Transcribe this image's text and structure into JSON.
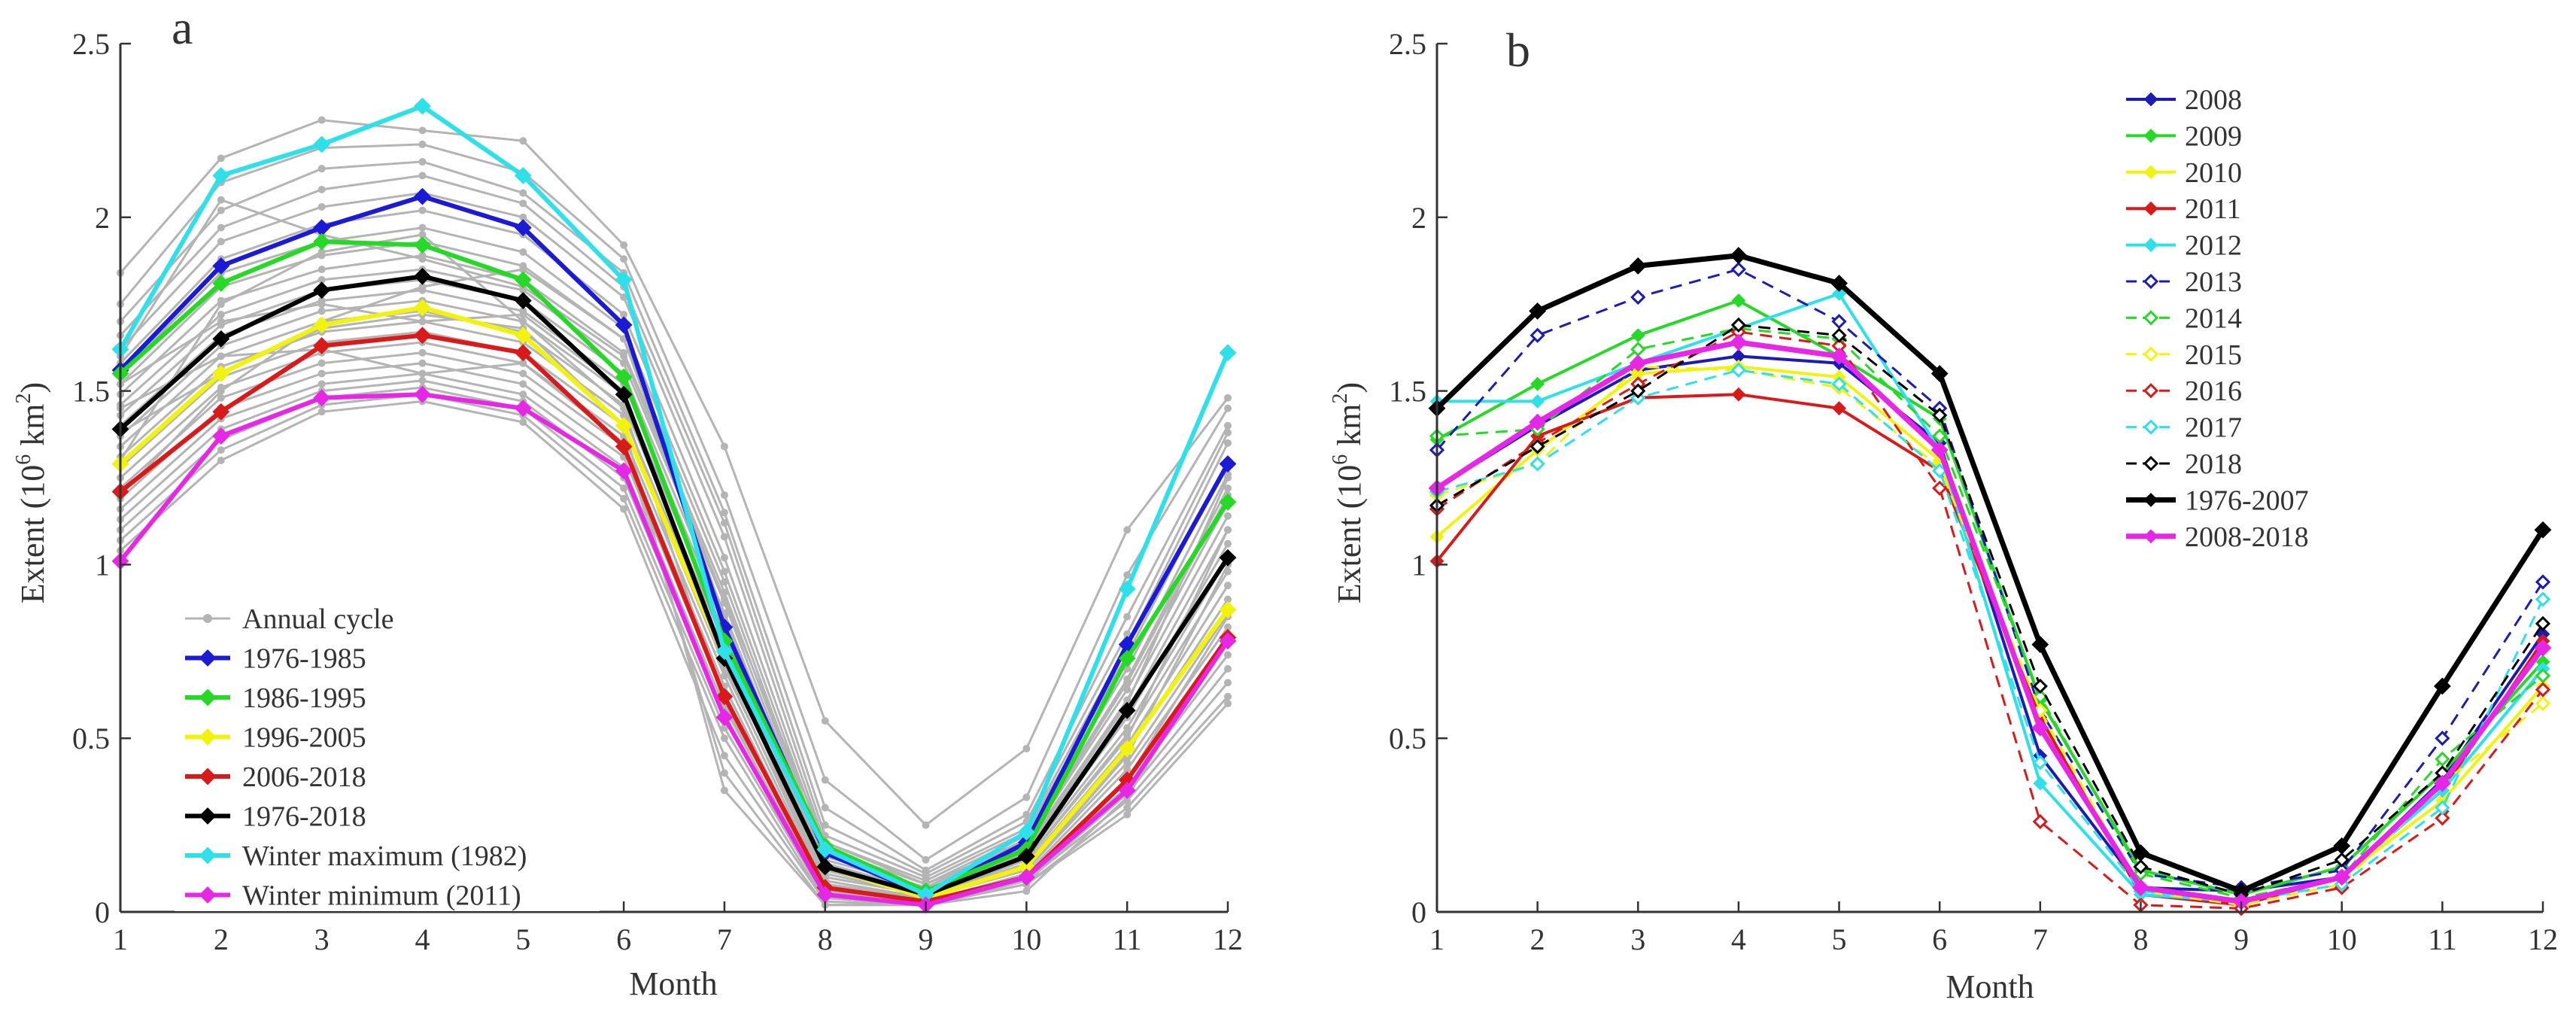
{
  "chart_data": [
    {
      "panel_label": "a",
      "type": "line",
      "title": "",
      "xlabel": "Month",
      "ylabel_prefix": "Extent (10",
      "ylabel_exp1": "6",
      "ylabel_mid": " km",
      "ylabel_exp2": "2",
      "ylabel_suffix": ")",
      "xlim": [
        1,
        12
      ],
      "ylim": [
        0,
        2.5
      ],
      "xticks": [
        "1",
        "2",
        "3",
        "4",
        "5",
        "6",
        "7",
        "8",
        "9",
        "10",
        "11",
        "12"
      ],
      "yticks": [
        "0",
        "0.5",
        "1",
        "1.5",
        "2",
        "2.5"
      ],
      "yticks_values": [
        0,
        0.5,
        1,
        1.5,
        2,
        2.5
      ],
      "x": [
        1,
        2,
        3,
        4,
        5,
        6,
        7,
        8,
        9,
        10,
        11,
        12
      ],
      "legend_position": "bottom-left",
      "background_series": {
        "name": "Annual cycle",
        "color": "#b4b4b4",
        "values": [
          [
            1.84,
            2.17,
            2.28,
            2.25,
            2.22,
            1.92,
            1.34,
            0.55,
            0.25,
            0.47,
            1.1,
            1.48
          ],
          [
            1.75,
            2.1,
            2.2,
            2.21,
            2.13,
            1.88,
            1.2,
            0.38,
            0.15,
            0.33,
            0.97,
            1.45
          ],
          [
            1.7,
            2.02,
            2.14,
            2.16,
            2.07,
            1.84,
            1.15,
            0.3,
            0.12,
            0.28,
            0.85,
            1.4
          ],
          [
            1.66,
            1.97,
            2.08,
            2.12,
            2.04,
            1.8,
            1.12,
            0.25,
            0.11,
            0.26,
            0.8,
            1.38
          ],
          [
            1.62,
            1.93,
            2.03,
            2.07,
            2.0,
            1.77,
            1.08,
            0.22,
            0.1,
            0.24,
            0.77,
            1.35
          ],
          [
            1.58,
            1.88,
            1.98,
            2.02,
            1.95,
            1.72,
            1.02,
            0.2,
            0.09,
            0.23,
            0.74,
            1.3
          ],
          [
            1.55,
            1.84,
            1.93,
            1.97,
            1.9,
            1.68,
            0.98,
            0.18,
            0.08,
            0.22,
            0.7,
            1.26
          ],
          [
            1.52,
            1.8,
            1.89,
            1.93,
            1.86,
            1.65,
            0.95,
            0.16,
            0.07,
            0.21,
            0.67,
            1.22
          ],
          [
            1.49,
            1.76,
            1.85,
            1.89,
            1.82,
            1.61,
            0.92,
            0.15,
            0.07,
            0.2,
            0.64,
            1.18
          ],
          [
            1.46,
            1.72,
            1.82,
            1.85,
            1.79,
            1.58,
            0.89,
            0.14,
            0.06,
            0.19,
            0.61,
            1.14
          ],
          [
            1.43,
            1.69,
            1.79,
            1.82,
            1.76,
            1.55,
            0.86,
            0.13,
            0.06,
            0.18,
            0.58,
            1.1
          ],
          [
            1.4,
            1.66,
            1.76,
            1.79,
            1.73,
            1.52,
            0.83,
            0.12,
            0.05,
            0.17,
            0.56,
            1.06
          ],
          [
            1.37,
            1.63,
            1.73,
            1.76,
            1.7,
            1.49,
            0.8,
            0.11,
            0.05,
            0.16,
            0.53,
            1.02
          ],
          [
            1.34,
            1.6,
            1.7,
            1.73,
            1.67,
            1.46,
            0.77,
            0.1,
            0.05,
            0.15,
            0.51,
            0.98
          ],
          [
            1.31,
            1.57,
            1.67,
            1.7,
            1.64,
            1.43,
            0.74,
            0.09,
            0.04,
            0.14,
            0.48,
            0.94
          ],
          [
            1.28,
            1.54,
            1.64,
            1.67,
            1.61,
            1.4,
            0.71,
            0.08,
            0.04,
            0.13,
            0.46,
            0.9
          ],
          [
            1.25,
            1.51,
            1.61,
            1.64,
            1.58,
            1.37,
            0.68,
            0.07,
            0.04,
            0.12,
            0.43,
            0.86
          ],
          [
            1.22,
            1.48,
            1.58,
            1.61,
            1.55,
            1.34,
            0.65,
            0.06,
            0.03,
            0.11,
            0.41,
            0.82
          ],
          [
            1.19,
            1.45,
            1.55,
            1.58,
            1.52,
            1.31,
            0.62,
            0.05,
            0.03,
            0.1,
            0.38,
            0.78
          ],
          [
            1.16,
            1.42,
            1.52,
            1.55,
            1.49,
            1.28,
            0.59,
            0.05,
            0.03,
            0.1,
            0.36,
            0.74
          ],
          [
            1.13,
            1.39,
            1.5,
            1.53,
            1.47,
            1.25,
            0.56,
            0.04,
            0.02,
            0.09,
            0.34,
            0.7
          ],
          [
            1.1,
            1.36,
            1.48,
            1.51,
            1.45,
            1.22,
            0.53,
            0.04,
            0.02,
            0.09,
            0.32,
            0.66
          ],
          [
            1.07,
            1.33,
            1.46,
            1.49,
            1.43,
            1.19,
            0.5,
            0.03,
            0.02,
            0.08,
            0.3,
            0.62
          ],
          [
            1.04,
            1.3,
            1.44,
            1.47,
            1.41,
            1.16,
            0.45,
            0.03,
            0.02,
            0.08,
            0.28,
            0.6
          ],
          [
            1.6,
            2.05,
            1.95,
            1.88,
            1.8,
            1.6,
            0.9,
            0.2,
            0.08,
            0.2,
            0.66,
            1.2
          ],
          [
            1.2,
            1.5,
            1.7,
            1.8,
            1.85,
            1.65,
            0.85,
            0.12,
            0.05,
            0.12,
            0.45,
            1.0
          ],
          [
            1.45,
            1.6,
            1.62,
            1.55,
            1.58,
            1.35,
            0.4,
            0.02,
            0.02,
            0.08,
            0.38,
            0.85
          ],
          [
            1.3,
            1.75,
            1.9,
            1.95,
            1.7,
            1.45,
            0.6,
            0.08,
            0.04,
            0.15,
            0.5,
            1.1
          ],
          [
            1.52,
            1.7,
            1.75,
            1.7,
            1.72,
            1.5,
            0.7,
            0.1,
            0.05,
            0.18,
            0.6,
            1.25
          ],
          [
            1.38,
            1.55,
            1.68,
            1.72,
            1.68,
            1.4,
            0.35,
            0.02,
            0.02,
            0.06,
            0.33,
            0.8
          ]
        ]
      },
      "series": [
        {
          "name": "1976-1985",
          "color": "#1b1bd6",
          "values": [
            1.56,
            1.86,
            1.97,
            2.06,
            1.97,
            1.69,
            0.82,
            0.17,
            0.05,
            0.2,
            0.77,
            1.29
          ]
        },
        {
          "name": "1986-1995",
          "color": "#26d926",
          "values": [
            1.55,
            1.81,
            1.93,
            1.92,
            1.82,
            1.54,
            0.78,
            0.19,
            0.06,
            0.18,
            0.73,
            1.18
          ]
        },
        {
          "name": "1996-2005",
          "color": "#f2f20f",
          "values": [
            1.29,
            1.55,
            1.69,
            1.74,
            1.66,
            1.4,
            0.73,
            0.13,
            0.04,
            0.13,
            0.47,
            0.87
          ]
        },
        {
          "name": "2006-2018",
          "color": "#d91a1a",
          "values": [
            1.21,
            1.44,
            1.63,
            1.66,
            1.61,
            1.34,
            0.62,
            0.07,
            0.03,
            0.1,
            0.38,
            0.79
          ]
        },
        {
          "name": "1976-2018",
          "color": "#000000",
          "values": [
            1.39,
            1.65,
            1.79,
            1.83,
            1.76,
            1.49,
            0.73,
            0.13,
            0.05,
            0.16,
            0.58,
            1.02
          ]
        },
        {
          "name": "Winter maximum (1982)",
          "color": "#2ee0ea",
          "values": [
            1.62,
            2.12,
            2.21,
            2.32,
            2.12,
            1.82,
            0.75,
            0.18,
            0.05,
            0.23,
            0.93,
            1.61
          ]
        },
        {
          "name": "Winter minimum (2011)",
          "color": "#e628e6",
          "values": [
            1.01,
            1.37,
            1.48,
            1.49,
            1.45,
            1.27,
            0.56,
            0.05,
            0.02,
            0.1,
            0.35,
            0.78
          ]
        }
      ]
    },
    {
      "panel_label": "b",
      "type": "line",
      "title": "",
      "xlabel": "Month",
      "ylabel_prefix": "Extent (10",
      "ylabel_exp1": "6",
      "ylabel_mid": " km",
      "ylabel_exp2": "2",
      "ylabel_suffix": ")",
      "xlim": [
        1,
        12
      ],
      "ylim": [
        0,
        2.5
      ],
      "xticks": [
        "1",
        "2",
        "3",
        "4",
        "5",
        "6",
        "7",
        "8",
        "9",
        "10",
        "11",
        "12"
      ],
      "yticks": [
        "0",
        "0.5",
        "1",
        "1.5",
        "2",
        "2.5"
      ],
      "yticks_values": [
        0,
        0.5,
        1,
        1.5,
        2,
        2.5
      ],
      "x": [
        1,
        2,
        3,
        4,
        5,
        6,
        7,
        8,
        9,
        10,
        11,
        12
      ],
      "legend_position": "top-center",
      "series": [
        {
          "name": "2008",
          "color": "#1b1bb5",
          "dashed": false,
          "open": false,
          "values": [
            1.22,
            1.4,
            1.56,
            1.6,
            1.58,
            1.35,
            0.45,
            0.07,
            0.06,
            0.1,
            0.38,
            0.8
          ]
        },
        {
          "name": "2009",
          "color": "#26d926",
          "dashed": false,
          "open": false,
          "values": [
            1.36,
            1.52,
            1.66,
            1.76,
            1.6,
            1.42,
            0.61,
            0.12,
            0.05,
            0.13,
            0.4,
            0.72
          ]
        },
        {
          "name": "2010",
          "color": "#f2f20f",
          "dashed": false,
          "open": false,
          "values": [
            1.08,
            1.33,
            1.55,
            1.57,
            1.54,
            1.3,
            0.55,
            0.07,
            0.03,
            0.1,
            0.32,
            0.65
          ]
        },
        {
          "name": "2011",
          "color": "#d91a1a",
          "dashed": false,
          "open": false,
          "values": [
            1.01,
            1.37,
            1.48,
            1.49,
            1.45,
            1.27,
            0.56,
            0.05,
            0.02,
            0.1,
            0.35,
            0.78
          ]
        },
        {
          "name": "2012",
          "color": "#2ee0ea",
          "dashed": false,
          "open": false,
          "values": [
            1.47,
            1.47,
            1.58,
            1.68,
            1.78,
            1.33,
            0.37,
            0.05,
            0.03,
            0.1,
            0.35,
            0.7
          ]
        },
        {
          "name": "2013",
          "color": "#1b1bb5",
          "dashed": true,
          "open": true,
          "values": [
            1.33,
            1.66,
            1.77,
            1.85,
            1.7,
            1.45,
            0.58,
            0.11,
            0.07,
            0.12,
            0.5,
            0.95
          ]
        },
        {
          "name": "2014",
          "color": "#26d926",
          "dashed": true,
          "open": true,
          "values": [
            1.37,
            1.39,
            1.62,
            1.68,
            1.65,
            1.37,
            0.62,
            0.11,
            0.04,
            0.1,
            0.44,
            0.68
          ]
        },
        {
          "name": "2015",
          "color": "#f2f20f",
          "dashed": true,
          "open": true,
          "values": [
            1.2,
            1.29,
            1.57,
            1.56,
            1.51,
            1.28,
            0.58,
            0.06,
            0.02,
            0.08,
            0.37,
            0.6
          ]
        },
        {
          "name": "2016",
          "color": "#d91a1a",
          "dashed": true,
          "open": true,
          "values": [
            1.16,
            1.35,
            1.52,
            1.67,
            1.63,
            1.22,
            0.26,
            0.02,
            0.01,
            0.07,
            0.27,
            0.64
          ]
        },
        {
          "name": "2017",
          "color": "#2ee0ea",
          "dashed": true,
          "open": true,
          "values": [
            1.21,
            1.29,
            1.48,
            1.56,
            1.52,
            1.27,
            0.43,
            0.06,
            0.03,
            0.08,
            0.3,
            0.9
          ]
        },
        {
          "name": "2018",
          "color": "#000000",
          "dashed": true,
          "open": true,
          "values": [
            1.17,
            1.34,
            1.5,
            1.69,
            1.66,
            1.43,
            0.65,
            0.13,
            0.05,
            0.15,
            0.4,
            0.83
          ]
        },
        {
          "name": "1976-2007",
          "color": "#000000",
          "dashed": false,
          "open": false,
          "thick": true,
          "values": [
            1.45,
            1.73,
            1.86,
            1.89,
            1.81,
            1.55,
            0.77,
            0.17,
            0.06,
            0.19,
            0.65,
            1.1
          ]
        },
        {
          "name": "2008-2018",
          "color": "#e628e6",
          "dashed": false,
          "open": false,
          "thick": true,
          "values": [
            1.22,
            1.41,
            1.58,
            1.64,
            1.6,
            1.33,
            0.53,
            0.07,
            0.03,
            0.1,
            0.37,
            0.76
          ]
        }
      ]
    }
  ]
}
